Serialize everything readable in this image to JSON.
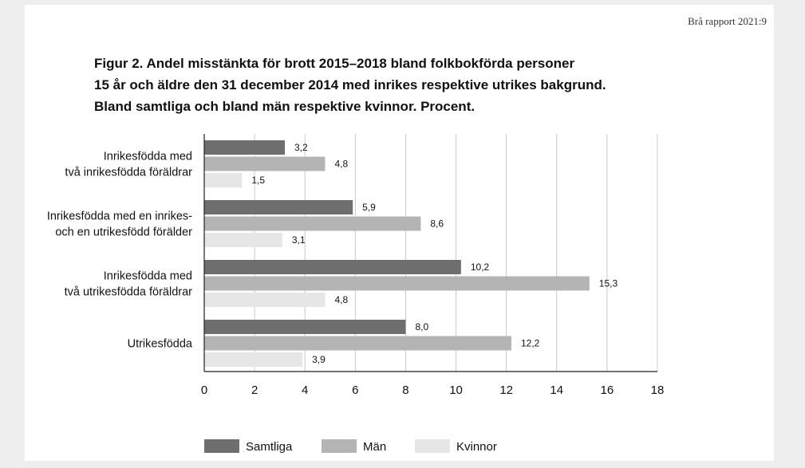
{
  "report_id": "Brå rapport 2021:9",
  "title_lines": [
    "Figur 2. Andel misstänkta för brott 2015–2018 bland folkbokförda personer",
    "15 år och äldre den 31 december 2014 med inrikes respektive utrikes bakgrund.",
    "Bland samtliga och bland män respektive kvinnor. Procent."
  ],
  "chart_data": {
    "type": "bar",
    "orientation": "horizontal",
    "categories": [
      [
        "Inrikesfödda med",
        "två inrikesfödda föräldrar"
      ],
      [
        "Inrikesfödda med en inrikes-",
        "och en utrikesfödd förälder"
      ],
      [
        "Inrikesfödda med",
        "två utrikesfödda föräldrar"
      ],
      [
        "Utrikesfödda"
      ]
    ],
    "series": [
      {
        "name": "Samtliga",
        "color": "#6e6e6e",
        "values": [
          3.2,
          5.9,
          10.2,
          8.0
        ],
        "labels": [
          "3,2",
          "5,9",
          "10,2",
          "8,0"
        ]
      },
      {
        "name": "Män",
        "color": "#b4b4b4",
        "values": [
          4.8,
          8.6,
          15.3,
          12.2
        ],
        "labels": [
          "4,8",
          "8,6",
          "15,3",
          "12,2"
        ]
      },
      {
        "name": "Kvinnor",
        "color": "#e6e6e6",
        "values": [
          1.5,
          3.1,
          4.8,
          3.9
        ],
        "labels": [
          "1,5",
          "3,1",
          "4,8",
          "3,9"
        ]
      }
    ],
    "xlim": [
      0,
      18
    ],
    "xticks": [
      0,
      2,
      4,
      6,
      8,
      10,
      12,
      14,
      16,
      18
    ],
    "grid": true,
    "legend_position": "bottom"
  }
}
